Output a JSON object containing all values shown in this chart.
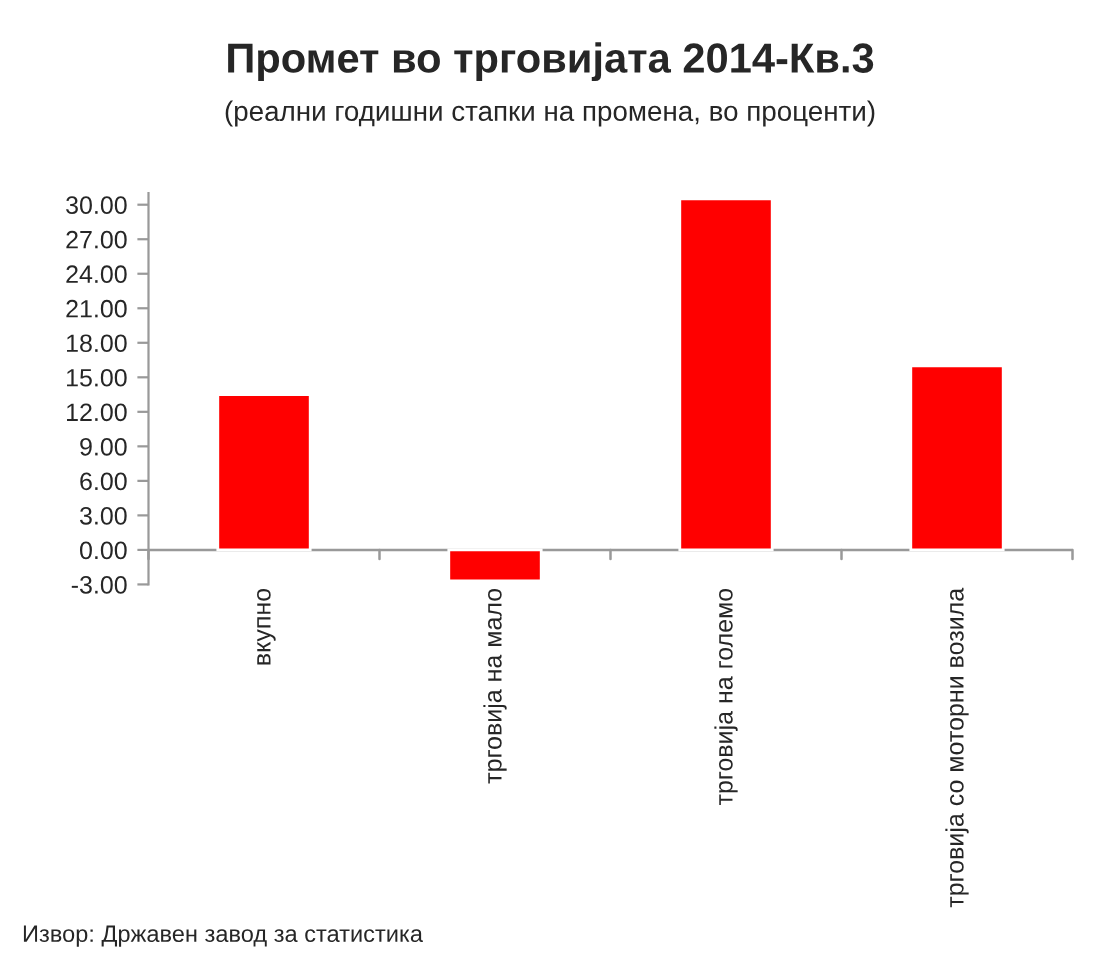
{
  "chart_data": {
    "type": "bar",
    "title": "Промет во трговијата 2014-Кв.3",
    "subtitle": "(реални годишни стапки на промена, во проценти)",
    "categories": [
      "вкупно",
      "трговија на мало",
      "трговија на големо",
      "трговија со моторни возила"
    ],
    "values": [
      13.5,
      -2.7,
      30.5,
      16.0
    ],
    "color": "#ff0000",
    "ylim": [
      -3,
      31
    ],
    "yticks": [
      {
        "value": -3,
        "label": "-3.00"
      },
      {
        "value": 0,
        "label": "0.00"
      },
      {
        "value": 3,
        "label": "3.00"
      },
      {
        "value": 6,
        "label": "6.00"
      },
      {
        "value": 9,
        "label": "9.00"
      },
      {
        "value": 12,
        "label": "12.00"
      },
      {
        "value": 15,
        "label": "15.00"
      },
      {
        "value": 18,
        "label": "18.00"
      },
      {
        "value": 21,
        "label": "21.00"
      },
      {
        "value": 24,
        "label": "24.00"
      },
      {
        "value": 27,
        "label": "27.00"
      },
      {
        "value": 30,
        "label": "30.00"
      }
    ],
    "grid": false,
    "legend": false,
    "annotations": [
      "Извор: Државен завод за статистика"
    ]
  }
}
